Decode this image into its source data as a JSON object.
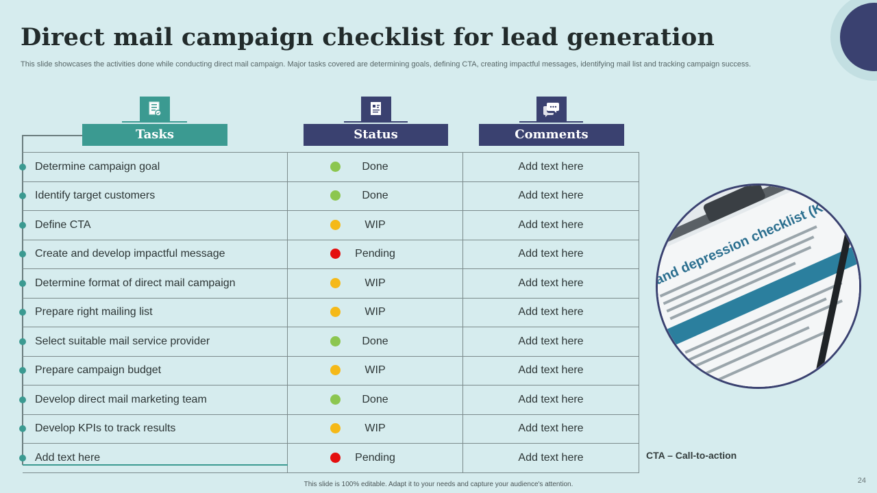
{
  "slide": {
    "title": "Direct mail campaign checklist for lead generation",
    "subtitle": "This slide showcases the activities done while conducting direct mail campaign. Major tasks covered are determining goals, defining CTA, creating impactful messages, identifying mail list and tracking campaign success.",
    "footer": "This slide is 100% editable. Adapt it to your needs and capture your audience's attention.",
    "page_number": "24",
    "cta_note": "CTA – Call-to-action"
  },
  "headers": {
    "tasks": "Tasks",
    "status": "Status",
    "comments": "Comments",
    "tasks_icon": "checklist-document-icon",
    "status_icon": "report-chart-icon",
    "comments_icon": "chat-bubbles-icon"
  },
  "colors": {
    "done": "#8cc64f",
    "wip": "#f5b918",
    "pending": "#e40f0f",
    "teal": "#3b9a91",
    "navy": "#3a4170"
  },
  "rows": [
    {
      "task": "Determine campaign goal",
      "status": "Done",
      "comment": "Add text here"
    },
    {
      "task": "Identify  target customers",
      "status": "Done",
      "comment": "Add text here"
    },
    {
      "task": "Define CTA",
      "status": "WIP",
      "comment": "Add text here"
    },
    {
      "task": "Create and develop impactful message",
      "status": "Pending",
      "comment": "Add text here"
    },
    {
      "task": "Determine format of direct mail campaign",
      "status": "WIP",
      "comment": "Add text here"
    },
    {
      "task": "Prepare right mailing list",
      "status": "WIP",
      "comment": "Add text here"
    },
    {
      "task": "Select suitable mail service provider",
      "status": "Done",
      "comment": "Add text here"
    },
    {
      "task": "Prepare campaign budget",
      "status": "WIP",
      "comment": "Add text here"
    },
    {
      "task": "Develop direct mail marketing team",
      "status": "Done",
      "comment": "Add text here"
    },
    {
      "task": "Develop KPIs to track results",
      "status": "WIP",
      "comment": "Add text here"
    },
    {
      "task": "Add text here",
      "status": "Pending",
      "comment": "Add text here"
    }
  ],
  "photo": {
    "subject": "depression-checklist-photo",
    "visible_heading": "ty and depression checklist (K"
  }
}
